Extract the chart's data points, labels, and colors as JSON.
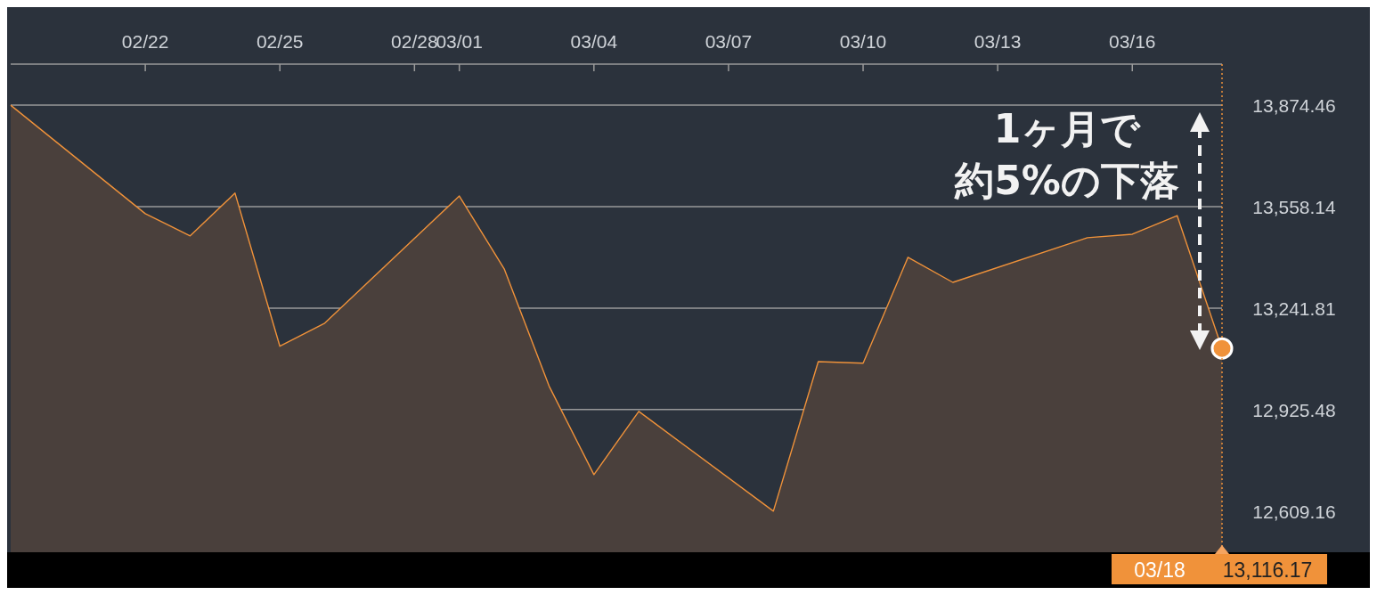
{
  "chart_data": {
    "type": "area",
    "x": [
      "--02-19",
      "--02-22",
      "--02-23",
      "--02-24",
      "--02-25",
      "--02-26",
      "--03-01",
      "--03-02",
      "--03-03",
      "--03-04",
      "--03-05",
      "--03-08",
      "--03-09",
      "--03-10",
      "--03-11",
      "--03-12",
      "--03-15",
      "--03-16",
      "--03-17",
      "--03-18"
    ],
    "series": [
      {
        "color": "#f0923a",
        "values": [
          13874,
          13536,
          13467,
          13600,
          13123,
          13195,
          13591,
          13364,
          12999,
          12723,
          12920,
          12609,
          13075,
          13070,
          13400,
          13322,
          13461,
          13472,
          13530,
          13116.17
        ]
      }
    ],
    "xlim": [
      "--02-19",
      "--03-18"
    ],
    "xticks": [
      {
        "value": "--02-22",
        "label": "02/22"
      },
      {
        "value": "--02-25",
        "label": "02/25"
      },
      {
        "value": "--02-28",
        "label": "02/28"
      },
      {
        "value": "--03-01",
        "label": "03/01"
      },
      {
        "value": "--03-04",
        "label": "03/04"
      },
      {
        "value": "--03-07",
        "label": "03/07"
      },
      {
        "value": "--03-10",
        "label": "03/10"
      },
      {
        "value": "--03-13",
        "label": "03/13"
      },
      {
        "value": "--03-16",
        "label": "03/16"
      }
    ],
    "ylim": [
      12481,
      14002
    ],
    "yticks": [
      {
        "value": 12609.16,
        "label": "12,609.16"
      },
      {
        "value": 12925.48,
        "label": "12,925.48"
      },
      {
        "value": 13241.81,
        "label": "13,241.81"
      },
      {
        "value": 13558.14,
        "label": "13,558.14"
      },
      {
        "value": 13874.46,
        "label": "13,874.46"
      }
    ],
    "grid": "y",
    "ref_lines": [
      {
        "axis": "x",
        "value": "--03-18",
        "label": "03/18",
        "color": "#f0923a",
        "line_style": "dotted"
      }
    ],
    "annotations": [
      "1ヶ月で",
      "約5%の下落",
      "13,116.17"
    ]
  }
}
